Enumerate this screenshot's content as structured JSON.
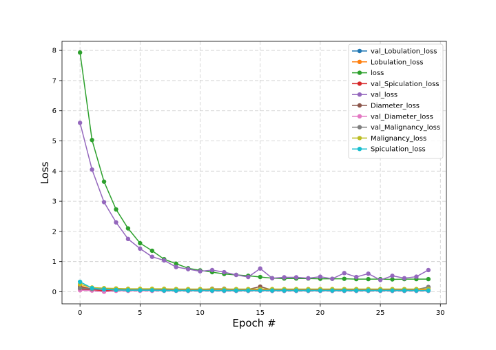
{
  "chart_data": {
    "type": "line",
    "title": "",
    "xlabel": "Epoch #",
    "ylabel": "Loss",
    "xlim": [
      -1.5,
      30.5
    ],
    "ylim": [
      -0.4,
      8.3
    ],
    "xticks": [
      0,
      5,
      10,
      15,
      20,
      25,
      30
    ],
    "yticks": [
      0,
      1,
      2,
      3,
      4,
      5,
      6,
      7,
      8
    ],
    "grid": true,
    "grid_style": "dashed",
    "legend_position": "top-right",
    "x": [
      0,
      1,
      2,
      3,
      4,
      5,
      6,
      7,
      8,
      9,
      10,
      11,
      12,
      13,
      14,
      15,
      16,
      17,
      18,
      19,
      20,
      21,
      22,
      23,
      24,
      25,
      26,
      27,
      28,
      29
    ],
    "series": [
      {
        "name": "val_Lobulation_loss",
        "color": "#1f77b4",
        "values": [
          0.1,
          0.06,
          0.04,
          0.04,
          0.04,
          0.04,
          0.04,
          0.04,
          0.04,
          0.03,
          0.03,
          0.03,
          0.03,
          0.03,
          0.03,
          0.04,
          0.03,
          0.03,
          0.03,
          0.03,
          0.03,
          0.03,
          0.03,
          0.03,
          0.03,
          0.03,
          0.03,
          0.03,
          0.03,
          0.03
        ]
      },
      {
        "name": "Lobulation_loss",
        "color": "#ff7f0e",
        "values": [
          0.2,
          0.09,
          0.08,
          0.07,
          0.07,
          0.07,
          0.07,
          0.07,
          0.06,
          0.06,
          0.06,
          0.06,
          0.06,
          0.06,
          0.06,
          0.06,
          0.06,
          0.06,
          0.06,
          0.06,
          0.06,
          0.06,
          0.06,
          0.06,
          0.06,
          0.06,
          0.06,
          0.06,
          0.06,
          0.06
        ]
      },
      {
        "name": "loss",
        "color": "#2ca02c",
        "values": [
          7.93,
          5.03,
          3.65,
          2.73,
          2.1,
          1.61,
          1.36,
          1.08,
          0.93,
          0.78,
          0.71,
          0.65,
          0.59,
          0.56,
          0.53,
          0.49,
          0.45,
          0.44,
          0.44,
          0.44,
          0.43,
          0.43,
          0.43,
          0.42,
          0.42,
          0.42,
          0.41,
          0.42,
          0.42,
          0.42
        ]
      },
      {
        "name": "val_Spiculation_loss",
        "color": "#d62728",
        "values": [
          0.08,
          0.05,
          0.04,
          0.04,
          0.04,
          0.04,
          0.04,
          0.04,
          0.04,
          0.04,
          0.04,
          0.04,
          0.04,
          0.04,
          0.04,
          0.04,
          0.04,
          0.04,
          0.04,
          0.04,
          0.04,
          0.04,
          0.04,
          0.04,
          0.04,
          0.04,
          0.04,
          0.04,
          0.04,
          0.04
        ]
      },
      {
        "name": "val_loss",
        "color": "#9467bd",
        "values": [
          5.6,
          4.05,
          2.97,
          2.3,
          1.75,
          1.43,
          1.16,
          1.04,
          0.82,
          0.75,
          0.68,
          0.72,
          0.65,
          0.56,
          0.49,
          0.77,
          0.45,
          0.48,
          0.48,
          0.45,
          0.5,
          0.43,
          0.62,
          0.49,
          0.6,
          0.39,
          0.53,
          0.45,
          0.5,
          0.72
        ]
      },
      {
        "name": "Diameter_loss",
        "color": "#8c564b",
        "values": [
          0.15,
          0.1,
          0.09,
          0.08,
          0.08,
          0.08,
          0.08,
          0.08,
          0.08,
          0.08,
          0.07,
          0.1,
          0.1,
          0.07,
          0.08,
          0.17,
          0.06,
          0.06,
          0.06,
          0.06,
          0.06,
          0.06,
          0.06,
          0.06,
          0.06,
          0.06,
          0.06,
          0.06,
          0.08,
          0.15
        ]
      },
      {
        "name": "val_Diameter_loss",
        "color": "#e377c2",
        "values": [
          0.05,
          0.04,
          0.0,
          0.03,
          0.03,
          0.03,
          0.03,
          0.03,
          0.03,
          0.03,
          0.03,
          0.03,
          0.03,
          0.03,
          0.03,
          0.03,
          0.03,
          0.03,
          0.03,
          0.03,
          0.03,
          0.03,
          0.03,
          0.03,
          0.03,
          0.03,
          0.03,
          0.03,
          0.03,
          0.03
        ]
      },
      {
        "name": "val_Malignancy_loss",
        "color": "#7f7f7f",
        "values": [
          0.12,
          0.09,
          0.08,
          0.08,
          0.07,
          0.07,
          0.07,
          0.07,
          0.07,
          0.07,
          0.07,
          0.08,
          0.08,
          0.07,
          0.07,
          0.09,
          0.07,
          0.07,
          0.07,
          0.07,
          0.07,
          0.07,
          0.07,
          0.07,
          0.07,
          0.07,
          0.07,
          0.07,
          0.07,
          0.16
        ]
      },
      {
        "name": "Malignancy_loss",
        "color": "#bcbd22",
        "values": [
          0.25,
          0.14,
          0.12,
          0.11,
          0.1,
          0.1,
          0.1,
          0.1,
          0.09,
          0.09,
          0.09,
          0.09,
          0.09,
          0.09,
          0.09,
          0.09,
          0.09,
          0.09,
          0.09,
          0.09,
          0.09,
          0.09,
          0.09,
          0.09,
          0.09,
          0.09,
          0.09,
          0.09,
          0.09,
          0.09
        ]
      },
      {
        "name": "Spiculation_loss",
        "color": "#17becf",
        "values": [
          0.33,
          0.12,
          0.08,
          0.06,
          0.05,
          0.05,
          0.05,
          0.04,
          0.04,
          0.04,
          0.04,
          0.04,
          0.04,
          0.04,
          0.04,
          0.04,
          0.04,
          0.04,
          0.04,
          0.04,
          0.04,
          0.04,
          0.04,
          0.04,
          0.04,
          0.04,
          0.04,
          0.04,
          0.04,
          0.04
        ]
      }
    ]
  }
}
